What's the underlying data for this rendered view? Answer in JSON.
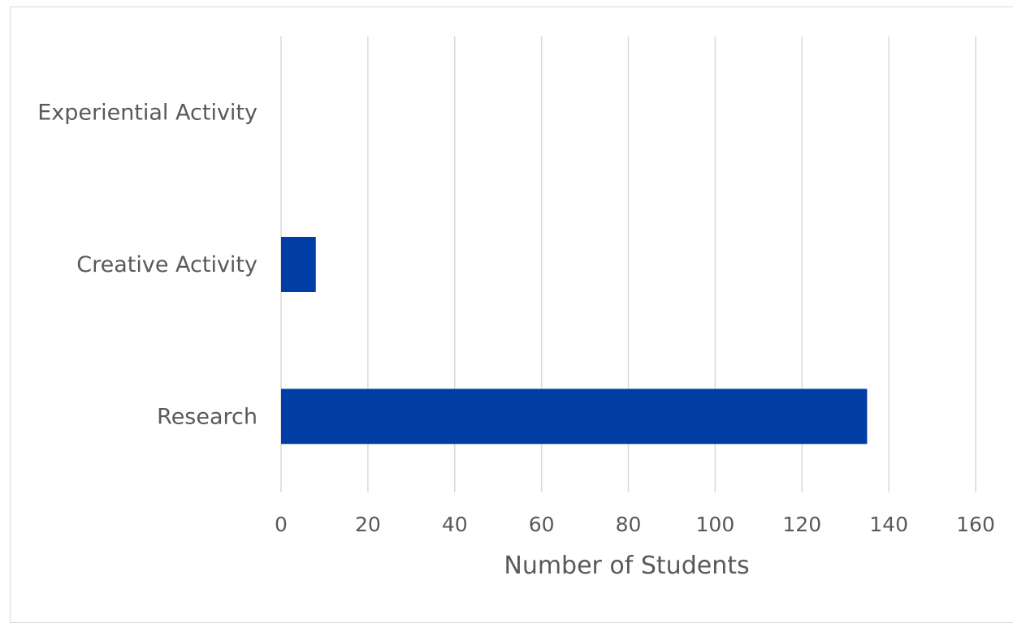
{
  "chart_data": {
    "type": "bar",
    "orientation": "horizontal",
    "categories": [
      "Experiential Activity",
      "Creative Activity",
      "Research"
    ],
    "values": [
      0,
      8,
      135
    ],
    "title": "",
    "xlabel": "Number of Students",
    "ylabel": "",
    "xlim": [
      0,
      160
    ],
    "x_ticks": [
      "0",
      "20",
      "40",
      "60",
      "80",
      "100",
      "120",
      "140",
      "160"
    ],
    "grid": "vertical",
    "legend": "none",
    "bar_color": "#003DA5"
  }
}
